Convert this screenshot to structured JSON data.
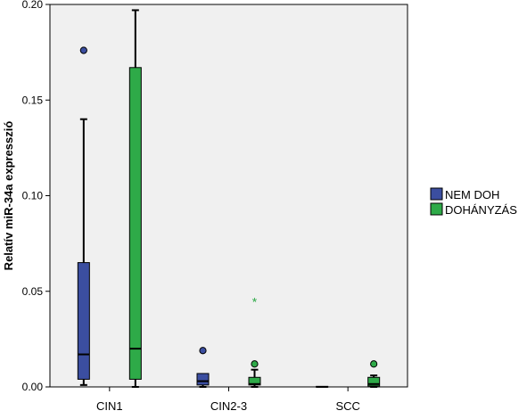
{
  "chart_data": {
    "type": "boxplot",
    "ylabel": "Relatív miR-34a expresszió",
    "xlabel": "",
    "ylim": [
      0,
      0.2
    ],
    "y_ticks": [
      "0.00",
      "0.05",
      "0.10",
      "0.15",
      "0.20"
    ],
    "y_tick_values": [
      0,
      0.05,
      0.1,
      0.15,
      0.2
    ],
    "categories": [
      "CIN1",
      "CIN2-3",
      "SCC"
    ],
    "grid": false,
    "legend_position": "right",
    "series": [
      {
        "name": "NEM DOH",
        "color": "#3b4ea0",
        "boxes": [
          {
            "min": 0.001,
            "q1": 0.004,
            "median": 0.017,
            "q3": 0.065,
            "max": 0.14,
            "outliers": [
              0.176
            ],
            "extremes": []
          },
          {
            "min": 0.0,
            "q1": 0.001,
            "median": 0.003,
            "q3": 0.007,
            "max": 0.007,
            "outliers": [
              0.019
            ],
            "extremes": []
          },
          {
            "min": 0.0,
            "q1": 0.0,
            "median": 0.0,
            "q3": 0.0003,
            "max": 0.0003,
            "outliers": [],
            "extremes": []
          }
        ]
      },
      {
        "name": "DOHÁNYZÁS",
        "color": "#2eaa48",
        "boxes": [
          {
            "min": 0.0,
            "q1": 0.004,
            "median": 0.02,
            "q3": 0.167,
            "max": 0.197,
            "outliers": [],
            "extremes": []
          },
          {
            "min": 0.0,
            "q1": 0.001,
            "median": 0.0015,
            "q3": 0.005,
            "max": 0.009,
            "outliers": [
              0.012
            ],
            "extremes": [
              0.045
            ]
          },
          {
            "min": 0.0,
            "q1": 0.0005,
            "median": 0.0015,
            "q3": 0.005,
            "max": 0.006,
            "outliers": [
              0.012
            ],
            "extremes": []
          }
        ]
      }
    ]
  }
}
